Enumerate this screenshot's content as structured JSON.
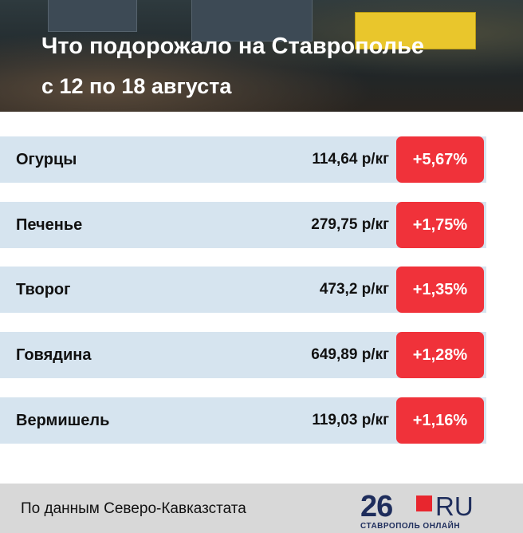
{
  "header": {
    "title": "Что подорожало на Ставрополье",
    "subtitle": "с 12 по 18 августа"
  },
  "table": {
    "rows": [
      [
        "Огурцы",
        "114,64 р/кг",
        "+5,67%"
      ],
      [
        "Печенье",
        "279,75 р/кг",
        "+1,75%"
      ],
      [
        "Творог",
        "473,2 р/кг",
        "+1,35%"
      ],
      [
        "Говядина",
        "649,89 р/кг",
        "+1,28%"
      ],
      [
        "Вермишель",
        "119,03 р/кг",
        "+1,16%"
      ]
    ]
  },
  "footer": {
    "source": "По данным Северо-Кавказстата",
    "logo": {
      "number": "26",
      "domain": "RU",
      "tagline": "СТАВРОПОЛЬ ОНЛАЙН"
    }
  }
}
